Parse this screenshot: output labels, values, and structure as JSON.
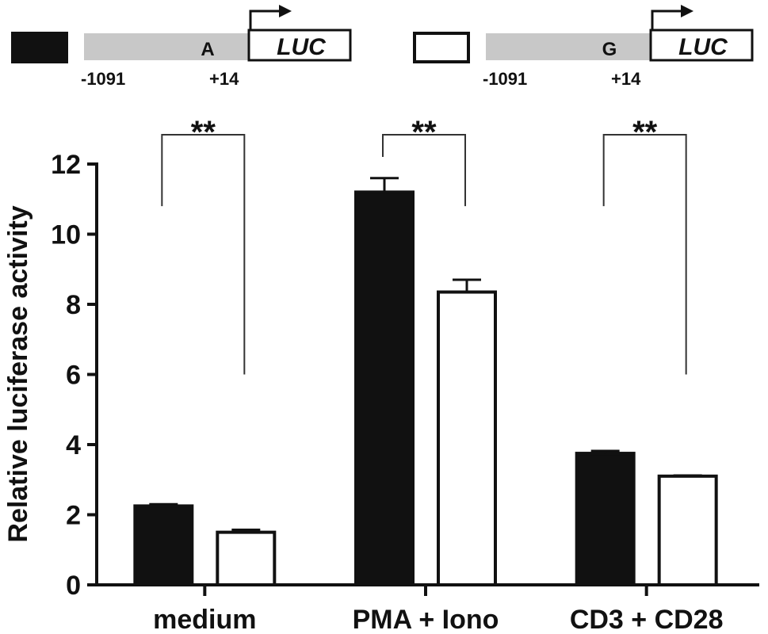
{
  "constructs": [
    {
      "legend_fill": "#111111",
      "allele": "A",
      "reporter": "LUC",
      "start": "-1091",
      "end": "+14"
    },
    {
      "legend_fill": "#ffffff",
      "allele": "G",
      "reporter": "LUC",
      "start": "-1091",
      "end": "+14"
    }
  ],
  "chart_data": {
    "type": "bar",
    "categories": [
      "medium",
      "PMA + Iono",
      "CD3 + CD28"
    ],
    "series": [
      {
        "fill": "#111111",
        "values": [
          2.25,
          11.2,
          3.75
        ],
        "errors": [
          0.05,
          0.4,
          0.07
        ]
      },
      {
        "fill": "#ffffff",
        "values": [
          1.5,
          8.35,
          3.1
        ],
        "errors": [
          0.07,
          0.35,
          0.02
        ]
      }
    ],
    "ylabel": "Relative luciferase activity",
    "ylim": [
      0,
      12
    ],
    "yticks": [
      0,
      2,
      4,
      6,
      8,
      10,
      12
    ],
    "grid": false,
    "significance": [
      {
        "category_index": 0,
        "label": "**"
      },
      {
        "category_index": 1,
        "label": "**"
      },
      {
        "category_index": 2,
        "label": "**"
      }
    ]
  }
}
